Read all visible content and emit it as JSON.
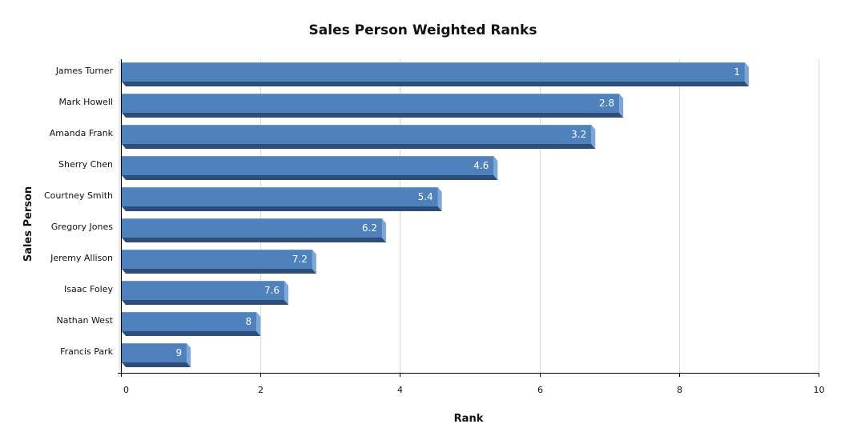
{
  "chart_data": {
    "type": "bar",
    "orientation": "horizontal",
    "title": "Sales Person Weighted Ranks",
    "xlabel": "Rank",
    "ylabel": "Sales Person",
    "categories": [
      "James Turner",
      "Mark Howell",
      "Amanda Frank",
      "Sherry Chen",
      "Courtney Smith",
      "Gregory Jones",
      "Jeremy Allison",
      "Isaac Foley",
      "Nathan West",
      "Francis Park"
    ],
    "values": [
      9,
      7.2,
      6.8,
      5.4,
      4.6,
      3.8,
      2.8,
      2.4,
      2,
      1
    ],
    "data_labels": [
      "1",
      "2.8",
      "3.2",
      "4.6",
      "5.4",
      "6.2",
      "7.2",
      "7.6",
      "8",
      "9"
    ],
    "xlim": [
      0,
      10
    ],
    "xticks": [
      "0",
      "2",
      "4",
      "6",
      "8",
      "10"
    ],
    "grid": true,
    "legend": "none",
    "colors": {
      "bar_face": "#4f81bd",
      "bar_top": "#7ea6d8",
      "bar_side": "#2f5585",
      "bar_bottom": "#2d4e78",
      "grid": "#d9d9d9",
      "axis": "#000000"
    }
  }
}
